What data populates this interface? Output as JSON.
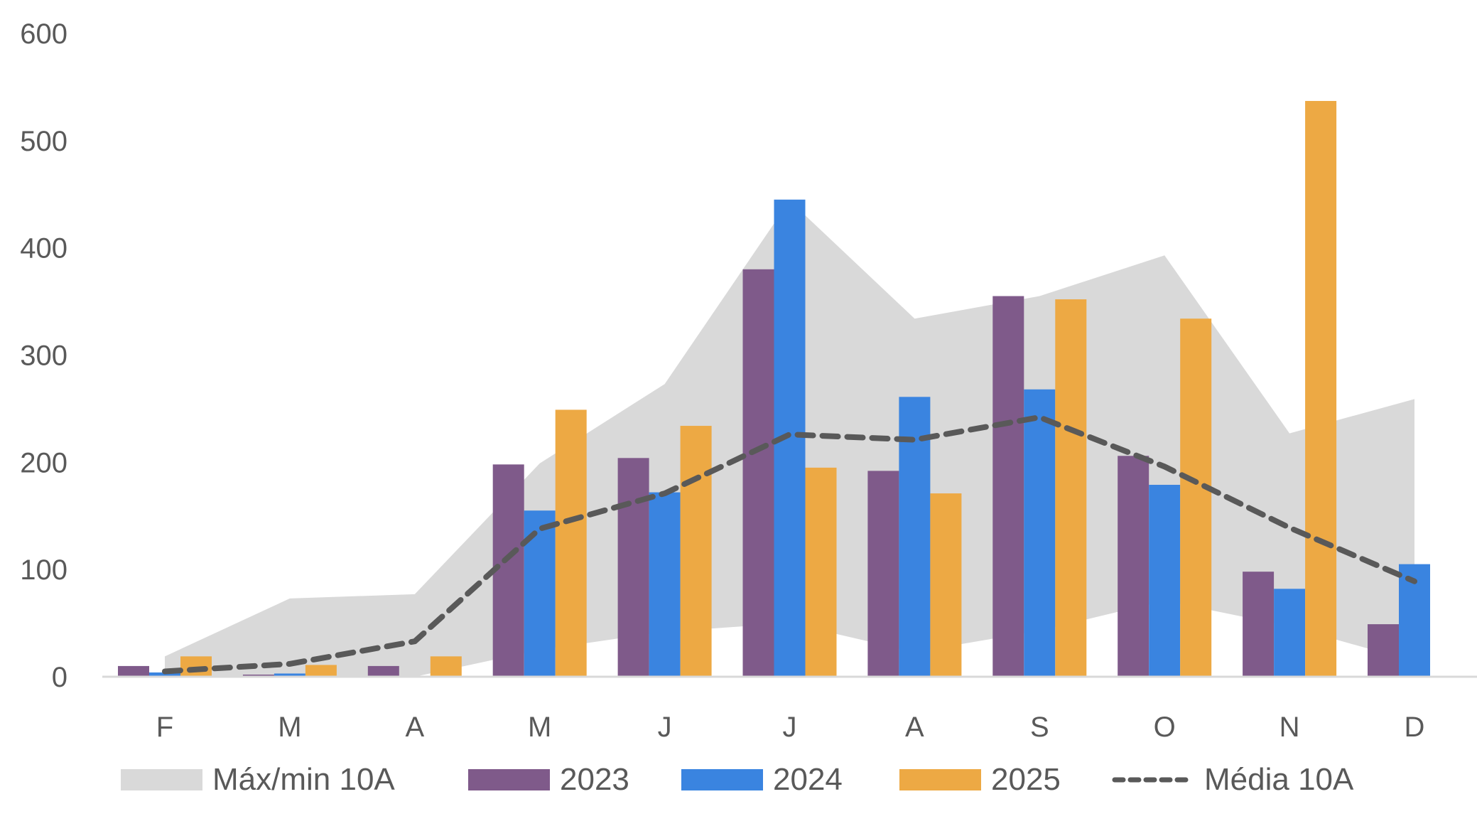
{
  "chart_data": {
    "type": "bar",
    "title": "",
    "xlabel": "",
    "ylabel": "",
    "ylim": [
      0,
      600
    ],
    "yticks": [
      "0",
      "100",
      "200",
      "300",
      "400",
      "500",
      "600"
    ],
    "grid": false,
    "legend_position": "bottom",
    "categories": [
      "F",
      "M",
      "A",
      "M",
      "J",
      "J",
      "A",
      "S",
      "O",
      "N",
      "D"
    ],
    "band": {
      "name": "Máx/min 10A",
      "color": "#d9d9d9",
      "max": [
        19,
        73,
        77,
        199,
        273,
        444,
        334,
        355,
        393,
        227,
        259
      ],
      "min": [
        0,
        0,
        0,
        25,
        42,
        50,
        23,
        43,
        71,
        47,
        14
      ]
    },
    "series": [
      {
        "name": "2023",
        "type": "bar",
        "color": "#7f5a8a",
        "values": [
          10,
          2,
          10,
          198,
          204,
          380,
          192,
          355,
          206,
          98,
          49
        ]
      },
      {
        "name": "2024",
        "type": "bar",
        "color": "#3a84e0",
        "values": [
          4,
          3,
          0,
          155,
          172,
          445,
          261,
          268,
          179,
          82,
          105
        ]
      },
      {
        "name": "2025",
        "type": "bar",
        "color": "#eda944",
        "values": [
          19,
          11,
          19,
          249,
          234,
          195,
          171,
          352,
          334,
          537,
          null
        ]
      }
    ],
    "mean_line": {
      "name": "Média 10A",
      "color": "#595959",
      "style": "dashed",
      "values": [
        5,
        12,
        33,
        138,
        171,
        226,
        221,
        242,
        196,
        139,
        89
      ]
    },
    "legend": [
      "Máx/min 10A",
      "2023",
      "2024",
      "2025",
      "Média 10A"
    ]
  }
}
